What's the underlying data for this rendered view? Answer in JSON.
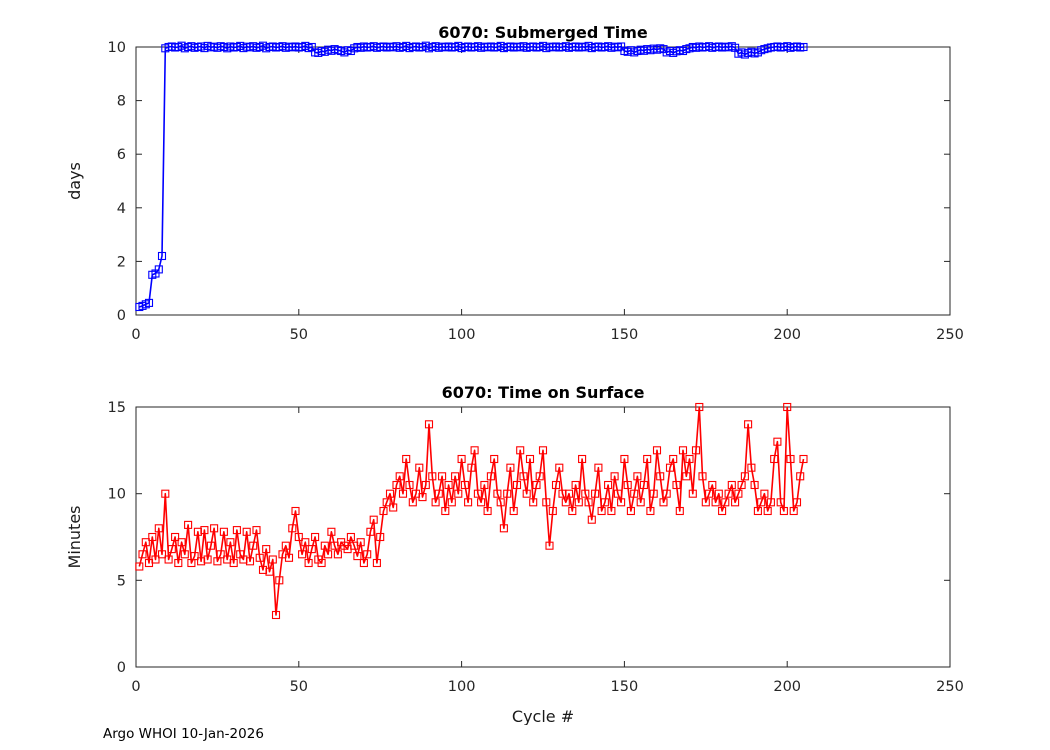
{
  "figure": {
    "footer": "Argo WHOI 10-Jan-2026",
    "background": "#ffffff"
  },
  "chart_data": [
    {
      "type": "line",
      "title": "6070: Submerged Time",
      "xlabel": "",
      "ylabel": "days",
      "xlim": [
        0,
        250
      ],
      "ylim": [
        0,
        10
      ],
      "xticks": [
        0,
        50,
        100,
        150,
        200,
        250
      ],
      "yticks": [
        0,
        2,
        4,
        6,
        8,
        10
      ],
      "color": "#0000ff",
      "marker": "square",
      "grid": false,
      "x_start": 1,
      "x_label_meaning": "Cycle #",
      "values": [
        0.3,
        0.34,
        0.4,
        0.45,
        1.5,
        1.55,
        1.7,
        2.2,
        9.95,
        10.0,
        10.02,
        9.98,
        10.0,
        10.05,
        9.95,
        10.0,
        10.03,
        9.97,
        10.0,
        10.02,
        9.96,
        10.04,
        9.99,
        10.01,
        9.97,
        10.03,
        10.0,
        9.95,
        10.02,
        9.98,
        10.0,
        10.04,
        9.96,
        10.01,
        9.99,
        10.03,
        9.97,
        10.0,
        10.05,
        9.95,
        10.0,
        10.02,
        9.98,
        10.0,
        10.03,
        9.97,
        10.01,
        9.99,
        10.02,
        9.98,
        10.0,
        10.04,
        9.96,
        10.0,
        9.8,
        9.78,
        9.85,
        9.82,
        9.9,
        9.86,
        9.92,
        9.88,
        9.85,
        9.8,
        9.88,
        9.85,
        9.95,
        10.0,
        9.97,
        10.02,
        9.98,
        10.0,
        10.03,
        9.97,
        10.0,
        10.02,
        9.98,
        10.01,
        9.99,
        10.03,
        9.97,
        10.0,
        10.04,
        9.96,
        10.0,
        10.02,
        9.98,
        10.0,
        10.05,
        9.95,
        10.0,
        10.03,
        9.97,
        10.01,
        9.99,
        10.02,
        9.98,
        10.0,
        10.04,
        9.96,
        10.0,
        10.02,
        9.98,
        10.0,
        10.03,
        9.97,
        10.01,
        9.99,
        10.02,
        9.98,
        10.0,
        10.04,
        9.96,
        10.0,
        10.02,
        9.98,
        10.01,
        9.99,
        10.03,
        9.97,
        10.0,
        10.02,
        9.98,
        10.0,
        10.04,
        9.96,
        10.01,
        9.99,
        10.02,
        9.98,
        10.0,
        10.03,
        9.97,
        10.0,
        10.02,
        9.98,
        10.01,
        9.99,
        10.04,
        9.96,
        10.0,
        10.02,
        9.98,
        10.0,
        10.03,
        9.97,
        10.01,
        9.99,
        10.02,
        9.85,
        9.82,
        9.88,
        9.8,
        9.85,
        9.9,
        9.86,
        9.92,
        9.88,
        9.94,
        9.9,
        9.95,
        9.92,
        9.8,
        9.85,
        9.78,
        9.84,
        9.88,
        9.85,
        9.92,
        9.95,
        10.0,
        9.97,
        10.02,
        9.98,
        10.0,
        10.03,
        9.97,
        10.0,
        10.02,
        9.98,
        10.01,
        9.99,
        10.03,
        9.97,
        9.75,
        9.8,
        9.72,
        9.78,
        9.82,
        9.76,
        9.8,
        9.88,
        9.92,
        9.95,
        9.98,
        10.0,
        10.02,
        9.98,
        10.0,
        10.03,
        9.97,
        10.0,
        10.02,
        9.98,
        10.0
      ]
    },
    {
      "type": "line",
      "title": "6070: Time on Surface",
      "xlabel": "Cycle #",
      "ylabel": "Minutes",
      "xlim": [
        0,
        250
      ],
      "ylim": [
        0,
        15
      ],
      "xticks": [
        0,
        50,
        100,
        150,
        200,
        250
      ],
      "yticks": [
        0,
        5,
        10,
        15
      ],
      "color": "#ff0000",
      "marker": "square",
      "grid": false,
      "x_start": 1,
      "x_label_meaning": "Cycle #",
      "values": [
        5.8,
        6.5,
        7.2,
        6.0,
        7.5,
        6.2,
        8.0,
        6.5,
        10.0,
        6.2,
        6.8,
        7.5,
        6.0,
        7.2,
        6.5,
        8.2,
        6.0,
        6.4,
        7.8,
        6.1,
        7.9,
        6.2,
        7.0,
        8.0,
        6.1,
        6.5,
        7.8,
        6.2,
        7.2,
        6.0,
        7.9,
        6.5,
        6.2,
        7.8,
        6.1,
        7.0,
        7.9,
        6.3,
        5.6,
        6.8,
        5.5,
        6.2,
        3.0,
        5.0,
        6.5,
        7.0,
        6.3,
        8.0,
        9.0,
        7.5,
        6.5,
        7.2,
        6.0,
        6.8,
        7.5,
        6.2,
        6.0,
        7.0,
        6.5,
        7.8,
        7.0,
        6.5,
        7.2,
        7.0,
        6.8,
        7.5,
        7.0,
        6.4,
        7.2,
        6.0,
        6.5,
        7.8,
        8.5,
        6.0,
        7.5,
        9.0,
        9.5,
        10.0,
        9.2,
        10.5,
        11.0,
        10.0,
        12.0,
        10.5,
        9.5,
        10.0,
        11.5,
        9.8,
        10.5,
        14.0,
        11.0,
        9.5,
        10.0,
        11.0,
        9.0,
        10.5,
        9.5,
        11.0,
        10.0,
        12.0,
        10.5,
        9.5,
        11.5,
        12.5,
        10.0,
        9.5,
        10.5,
        9.0,
        11.0,
        12.0,
        10.0,
        9.5,
        8.0,
        10.0,
        11.5,
        9.0,
        10.5,
        12.5,
        11.0,
        10.0,
        12.0,
        9.5,
        10.5,
        11.0,
        12.5,
        9.5,
        7.0,
        9.0,
        10.5,
        11.5,
        10.0,
        9.5,
        10.0,
        9.0,
        10.5,
        9.5,
        12.0,
        10.0,
        9.5,
        8.5,
        10.0,
        11.5,
        9.0,
        9.5,
        10.5,
        9.0,
        11.0,
        10.0,
        9.5,
        12.0,
        10.5,
        9.0,
        10.0,
        11.0,
        9.5,
        10.5,
        12.0,
        9.0,
        10.0,
        12.5,
        11.0,
        9.5,
        10.0,
        11.5,
        12.0,
        10.5,
        9.0,
        12.5,
        11.0,
        12.0,
        10.0,
        12.5,
        15.0,
        11.0,
        9.5,
        10.0,
        10.5,
        9.5,
        10.0,
        9.0,
        9.5,
        10.0,
        10.5,
        9.5,
        10.0,
        10.5,
        11.0,
        14.0,
        11.5,
        10.5,
        9.0,
        9.5,
        10.0,
        9.0,
        9.5,
        12.0,
        13.0,
        9.5,
        9.0,
        15.0,
        12.0,
        9.0,
        9.5,
        11.0,
        12.0
      ]
    }
  ]
}
